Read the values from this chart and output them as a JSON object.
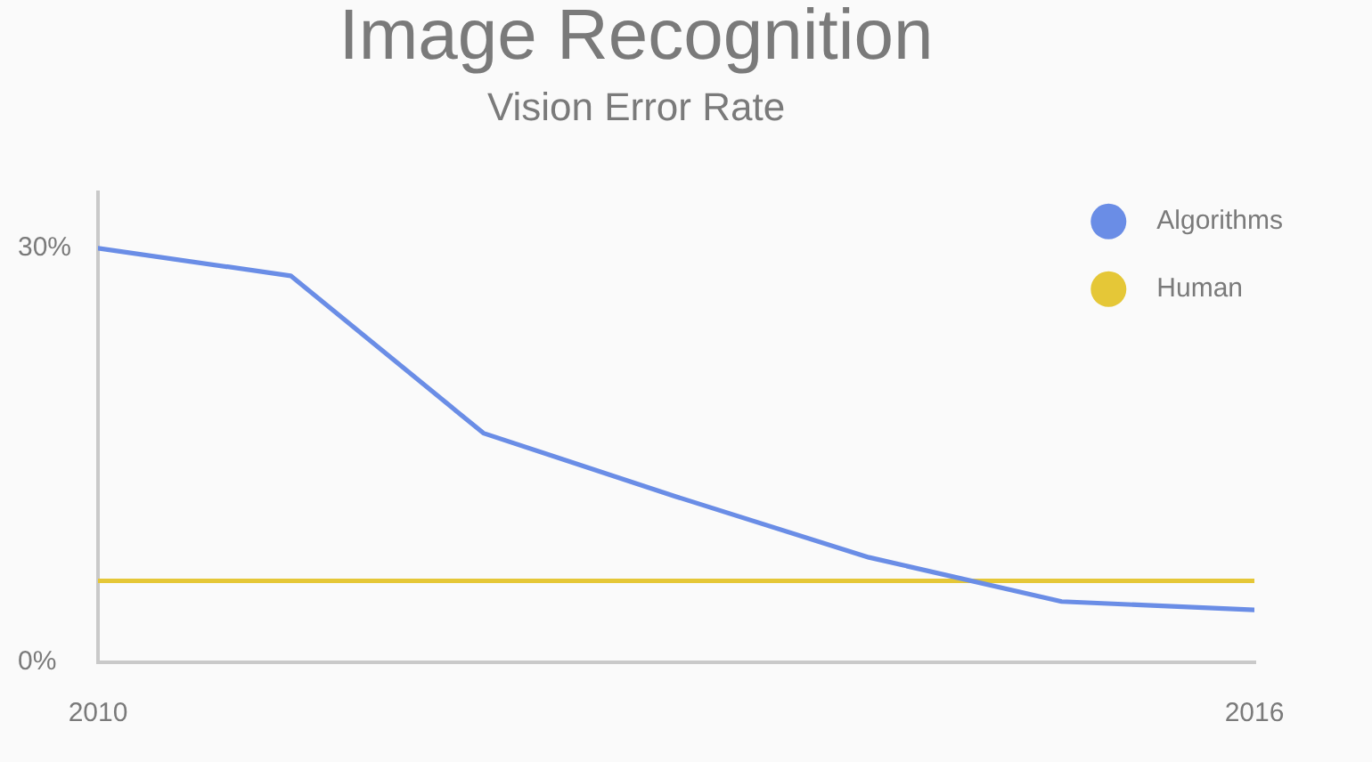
{
  "chart_data": {
    "type": "line",
    "title": "Image Recognition",
    "subtitle": "Vision Error Rate",
    "x": [
      2010,
      2011,
      2012,
      2013,
      2014,
      2015,
      2016
    ],
    "series": [
      {
        "name": "Algorithms",
        "color": "#6a8de6",
        "values": [
          30,
          28,
          16.6,
          12,
          7.6,
          4.4,
          3.8
        ]
      },
      {
        "name": "Human",
        "color": "#e5c737",
        "values": [
          5.9,
          5.9,
          5.9,
          5.9,
          5.9,
          5.9,
          5.9
        ]
      }
    ],
    "xlim": [
      2010,
      2016
    ],
    "xticks": [
      2010,
      2016
    ],
    "ylim": [
      0,
      34
    ],
    "yticks": [
      {
        "value": 0,
        "label": "0%"
      },
      {
        "value": 30,
        "label": "30%"
      }
    ],
    "legend": "top right",
    "marker": "none"
  }
}
